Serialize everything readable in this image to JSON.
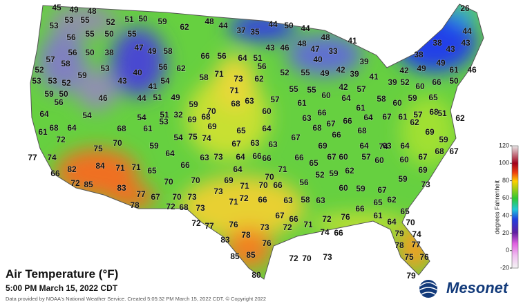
{
  "title": "Air Temperature (°F)",
  "timestamp": "5:00 PM March 15, 2022 CDT",
  "credit": "Data provided by NOAA's National Weather Service. Created 5:05:32 PM March 15, 2022 CDT. © Copyright 2022",
  "logo": "Mesonet",
  "colorbar": {
    "label": "degrees Fahrenheit",
    "ticks": [
      120,
      100,
      80,
      60,
      40,
      20,
      0,
      -20
    ],
    "lim": [
      -20,
      120
    ]
  },
  "readings": [
    45,
    49,
    48,
    53,
    53,
    55,
    52,
    51,
    50,
    59,
    62,
    48,
    44,
    37,
    35,
    44,
    50,
    44,
    26,
    56,
    55,
    50,
    55,
    48,
    41,
    44,
    38,
    43,
    43,
    57,
    56,
    50,
    38,
    47,
    49,
    58,
    66,
    56,
    64,
    51,
    43,
    46,
    48,
    47,
    33,
    40,
    42,
    39,
    39,
    41,
    38,
    49,
    61,
    46,
    52,
    58,
    53,
    40,
    41,
    54,
    56,
    62,
    58,
    71,
    73,
    62,
    56,
    52,
    55,
    49,
    53,
    53,
    52,
    59,
    43,
    42,
    57,
    42,
    49,
    39,
    52,
    60,
    66,
    50,
    59,
    50,
    56,
    46,
    44,
    51,
    49,
    71,
    70,
    68,
    63,
    60,
    57,
    55,
    55,
    60,
    61,
    64,
    61,
    58,
    60,
    59,
    65,
    68,
    51,
    64,
    54,
    54,
    51,
    32,
    59,
    69,
    68,
    61,
    68,
    64,
    68,
    61,
    53,
    69,
    65,
    64,
    63,
    66,
    68,
    67,
    66,
    68,
    64,
    67,
    61,
    57,
    69,
    62,
    72,
    75,
    70,
    59,
    54,
    75,
    74,
    63,
    67,
    63,
    67,
    69,
    66,
    64,
    63,
    64,
    59,
    62,
    68,
    67,
    77,
    74,
    82,
    84,
    71,
    71,
    65,
    64,
    66,
    63,
    73,
    64,
    64,
    66,
    66,
    71,
    66,
    65,
    70,
    67,
    60,
    57,
    60,
    74,
    60,
    67,
    66,
    72,
    85,
    83,
    70,
    70,
    69,
    71,
    70,
    66,
    56,
    52,
    59,
    62,
    60,
    59,
    67,
    59,
    69,
    73,
    77,
    67,
    70,
    73,
    73,
    71,
    72,
    66,
    63,
    58,
    63,
    66,
    65,
    62,
    78,
    72,
    68,
    73,
    65,
    61,
    67,
    66,
    71,
    72,
    76,
    72,
    77,
    76,
    73,
    72,
    74,
    66,
    64,
    70,
    83,
    78,
    76,
    79,
    74,
    78,
    77,
    85,
    85,
    72,
    70,
    73,
    75,
    76,
    80,
    79
  ]
}
